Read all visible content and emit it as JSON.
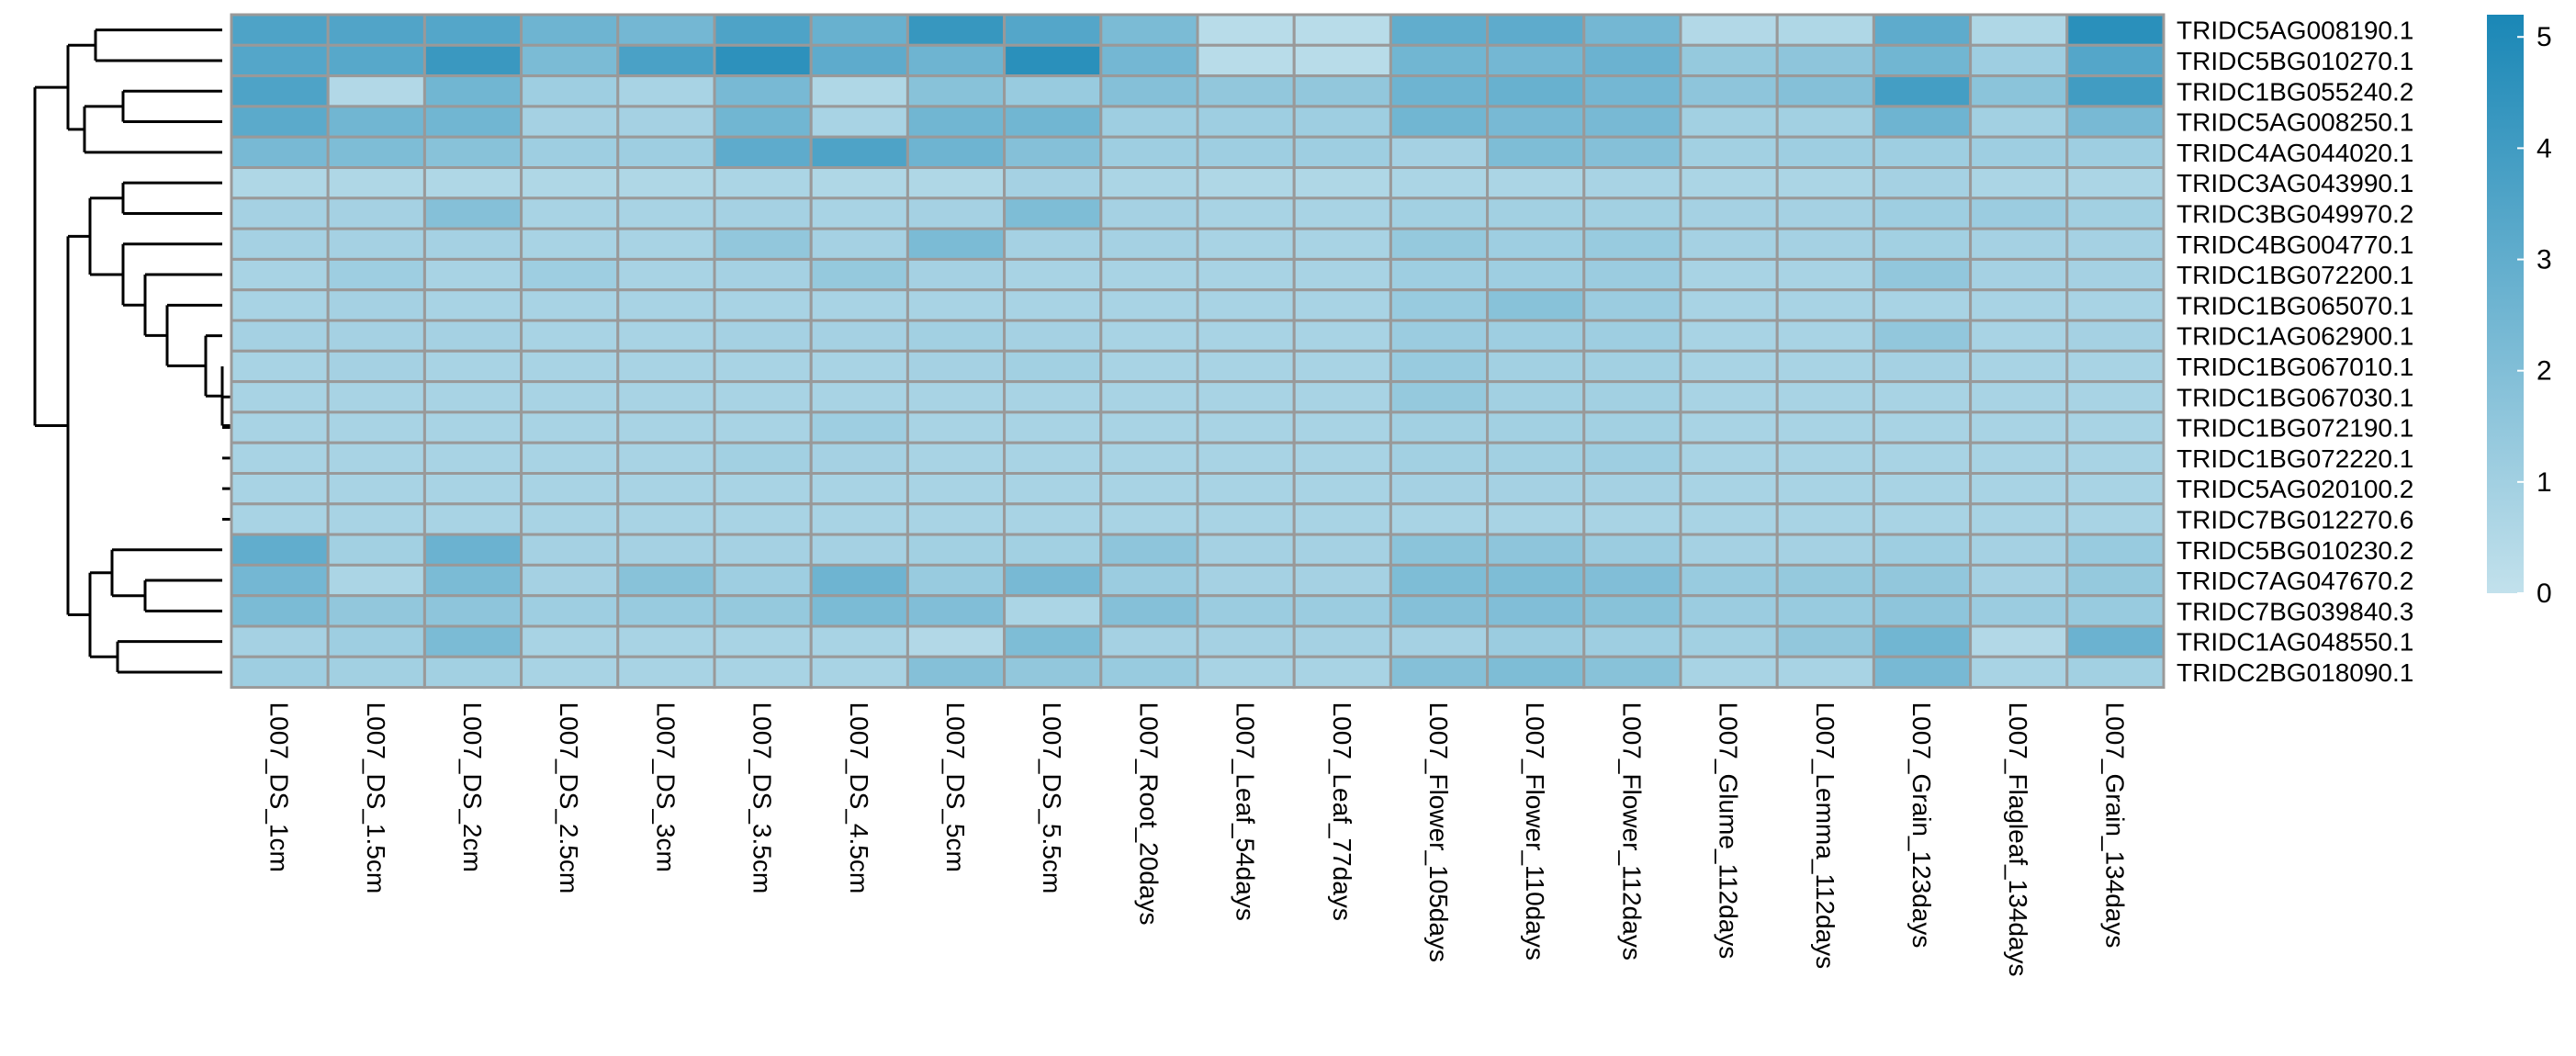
{
  "chart_data": {
    "type": "heatmap",
    "title": "",
    "xlabel": "",
    "ylabel": "",
    "columns": [
      "L007_DS_1cm",
      "L007_DS_1.5cm",
      "L007_DS_2cm",
      "L007_DS_2.5cm",
      "L007_DS_3cm",
      "L007_DS_3.5cm",
      "L007_DS_4.5cm",
      "L007_DS_5cm",
      "L007_DS_5.5cm",
      "L007_Root_20days",
      "L007_Leaf_54days",
      "L007_Leaf_77days",
      "L007_Flower_105days",
      "L007_Flower_110days",
      "L007_Flower_112days",
      "L007_Glume_112days",
      "L007_Lemma_112days",
      "L007_Grain_123days",
      "L007_Flagleaf_134days",
      "L007_Grain_134days"
    ],
    "rows": [
      "TRIDC5AG008190.1",
      "TRIDC5BG010270.1",
      "TRIDC1BG055240.2",
      "TRIDC5AG008250.1",
      "TRIDC4AG044020.1",
      "TRIDC3AG043990.1",
      "TRIDC3BG049970.2",
      "TRIDC4BG004770.1",
      "TRIDC1BG072200.1",
      "TRIDC1BG065070.1",
      "TRIDC1AG062900.1",
      "TRIDC1BG067010.1",
      "TRIDC1BG067030.1",
      "TRIDC1BG072190.1",
      "TRIDC1BG072220.1",
      "TRIDC5AG020100.2",
      "TRIDC7BG012270.6",
      "TRIDC5BG010230.2",
      "TRIDC7AG047670.2",
      "TRIDC7BG039840.3",
      "TRIDC1AG048550.1",
      "TRIDC2BG018090.1"
    ],
    "values": [
      [
        3.6,
        3.5,
        3.4,
        2.6,
        2.4,
        3.6,
        2.8,
        4.3,
        3.4,
        2.2,
        0.3,
        0.3,
        3.0,
        3.1,
        2.4,
        0.5,
        0.6,
        3.1,
        0.6,
        4.7
      ],
      [
        3.4,
        3.3,
        4.2,
        2.2,
        3.7,
        4.6,
        3.1,
        2.6,
        4.7,
        2.4,
        0.3,
        0.3,
        2.5,
        2.4,
        2.7,
        1.4,
        1.6,
        2.5,
        1.1,
        3.4
      ],
      [
        3.6,
        0.5,
        2.5,
        1.1,
        0.8,
        2.3,
        0.6,
        1.8,
        1.3,
        1.9,
        1.5,
        1.5,
        2.6,
        2.8,
        2.4,
        1.6,
        1.9,
        3.9,
        1.7,
        4.0
      ],
      [
        3.2,
        2.5,
        2.5,
        0.9,
        0.9,
        2.5,
        0.8,
        2.5,
        2.5,
        1.1,
        1.1,
        1.1,
        2.5,
        2.3,
        2.3,
        1.0,
        1.0,
        2.6,
        1.0,
        2.3
      ],
      [
        2.3,
        2.1,
        1.8,
        1.1,
        1.1,
        3.1,
        3.6,
        2.6,
        1.9,
        1.1,
        1.1,
        1.1,
        0.9,
        2.1,
        1.9,
        1.0,
        1.1,
        1.1,
        1.1,
        1.1
      ],
      [
        0.6,
        0.6,
        0.6,
        0.6,
        0.6,
        0.7,
        0.6,
        0.6,
        0.9,
        0.7,
        0.6,
        0.6,
        0.7,
        0.7,
        0.8,
        0.7,
        0.7,
        0.9,
        0.7,
        0.7
      ],
      [
        0.9,
        0.9,
        1.9,
        0.8,
        0.8,
        0.9,
        0.8,
        0.9,
        2.1,
        0.9,
        0.8,
        0.8,
        1.0,
        1.0,
        1.0,
        0.9,
        0.9,
        1.1,
        1.2,
        1.0
      ],
      [
        0.9,
        0.9,
        0.9,
        0.8,
        0.8,
        1.5,
        0.9,
        2.2,
        0.9,
        0.9,
        0.8,
        0.8,
        1.4,
        1.1,
        1.3,
        0.9,
        0.9,
        1.0,
        0.9,
        0.9
      ],
      [
        0.8,
        1.1,
        0.8,
        1.1,
        0.8,
        0.9,
        1.4,
        0.9,
        0.8,
        0.8,
        0.8,
        0.8,
        1.1,
        1.1,
        1.2,
        0.8,
        0.8,
        1.5,
        0.9,
        0.9
      ],
      [
        0.8,
        0.9,
        0.8,
        0.8,
        0.8,
        0.8,
        0.8,
        0.8,
        0.8,
        0.8,
        0.8,
        0.8,
        1.3,
        1.8,
        1.2,
        0.8,
        0.8,
        0.8,
        0.8,
        0.8
      ],
      [
        0.9,
        0.9,
        0.9,
        0.8,
        0.8,
        0.9,
        0.9,
        1.0,
        0.9,
        0.8,
        0.8,
        0.8,
        1.2,
        1.1,
        1.1,
        0.8,
        0.8,
        1.5,
        0.8,
        0.9
      ],
      [
        0.8,
        0.9,
        0.8,
        0.8,
        0.8,
        0.8,
        0.8,
        0.9,
        1.0,
        0.8,
        0.8,
        0.8,
        1.3,
        1.0,
        1.0,
        0.8,
        0.8,
        0.9,
        0.8,
        0.8
      ],
      [
        0.8,
        0.8,
        0.8,
        0.8,
        0.8,
        0.8,
        0.8,
        0.8,
        0.8,
        0.8,
        0.8,
        0.8,
        1.4,
        1.0,
        1.0,
        0.8,
        0.8,
        0.8,
        0.8,
        0.8
      ],
      [
        0.8,
        0.8,
        0.8,
        0.8,
        0.8,
        0.8,
        1.1,
        0.8,
        0.8,
        0.8,
        0.8,
        0.8,
        1.0,
        1.0,
        1.0,
        0.8,
        0.8,
        0.8,
        0.8,
        0.8
      ],
      [
        0.8,
        0.8,
        0.8,
        0.8,
        0.8,
        1.0,
        0.9,
        0.8,
        0.8,
        0.8,
        0.8,
        0.8,
        1.0,
        1.0,
        1.1,
        0.8,
        0.8,
        0.8,
        0.8,
        0.8
      ],
      [
        0.8,
        0.8,
        0.8,
        0.8,
        0.8,
        0.8,
        0.8,
        0.8,
        0.8,
        0.8,
        0.8,
        0.8,
        0.9,
        0.9,
        0.9,
        0.8,
        0.8,
        0.8,
        0.8,
        0.8
      ],
      [
        0.8,
        0.8,
        0.8,
        0.8,
        0.8,
        0.8,
        0.8,
        0.8,
        0.8,
        0.8,
        0.8,
        0.8,
        0.8,
        0.8,
        0.8,
        0.8,
        0.8,
        0.8,
        0.8,
        0.8
      ],
      [
        3.0,
        1.0,
        2.7,
        0.9,
        0.9,
        0.9,
        0.9,
        1.0,
        1.0,
        1.6,
        0.9,
        0.9,
        1.7,
        1.6,
        1.2,
        0.9,
        0.9,
        1.1,
        0.9,
        1.3
      ],
      [
        2.4,
        0.7,
        2.2,
        0.9,
        1.8,
        1.1,
        2.6,
        1.3,
        2.3,
        1.2,
        0.9,
        0.9,
        2.1,
        2.1,
        2.0,
        1.3,
        1.4,
        1.5,
        0.9,
        1.4
      ],
      [
        2.2,
        1.5,
        1.6,
        1.1,
        1.3,
        1.4,
        2.2,
        2.0,
        0.7,
        1.9,
        1.2,
        1.2,
        1.9,
        2.0,
        1.8,
        1.2,
        1.3,
        1.6,
        1.2,
        1.3
      ],
      [
        0.9,
        1.1,
        2.2,
        0.8,
        0.8,
        0.8,
        0.8,
        0.5,
        2.1,
        0.9,
        0.9,
        0.9,
        0.9,
        1.2,
        1.1,
        1.0,
        1.5,
        2.5,
        0.5,
        2.7
      ],
      [
        1.1,
        1.0,
        1.0,
        0.8,
        0.8,
        0.8,
        0.8,
        1.9,
        1.5,
        1.3,
        0.8,
        0.8,
        1.9,
        2.1,
        1.8,
        0.8,
        0.8,
        2.3,
        0.8,
        1.0
      ]
    ],
    "color_scale": {
      "min": 0,
      "max": 5.2,
      "low_color": "#c2e1ec",
      "high_color": "#1a87b6",
      "ticks": [
        0,
        1,
        2,
        3,
        4,
        5
      ]
    },
    "cell_border_color": "#999999",
    "row_dendrogram": "left",
    "legend_position": "right"
  }
}
